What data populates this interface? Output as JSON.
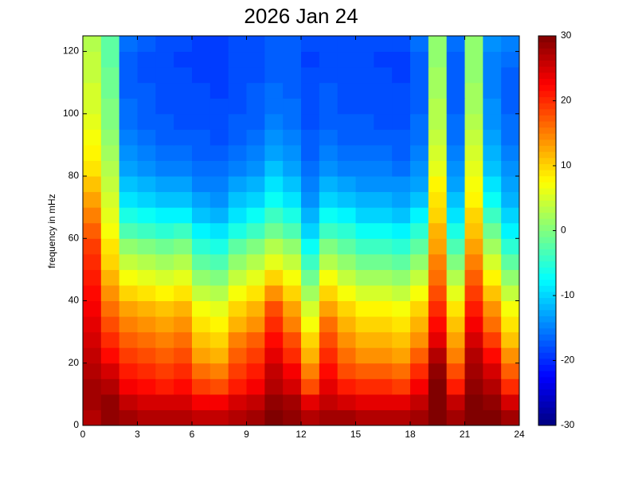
{
  "chart_data": {
    "type": "heatmap",
    "title": "2026 Jan 24",
    "ylabel": "frequency in mHz",
    "xlim": [
      0,
      24
    ],
    "xticks": [
      0,
      3,
      6,
      9,
      12,
      15,
      18,
      21,
      24
    ],
    "ylim": [
      0,
      125
    ],
    "yticks": [
      0,
      20,
      40,
      60,
      80,
      100,
      120
    ],
    "colorbar": {
      "lim": [
        -30,
        30
      ],
      "ticks": [
        -30,
        -20,
        -10,
        0,
        10,
        20,
        30
      ],
      "colormap": "jet"
    },
    "x": [
      0.5,
      1.5,
      2.5,
      3.5,
      4.5,
      5.5,
      6.5,
      7.5,
      8.5,
      9.5,
      10.5,
      11.5,
      12.5,
      13.5,
      14.5,
      15.5,
      16.5,
      17.5,
      18.5,
      19.5,
      20.5,
      21.5,
      22.5,
      23.5
    ],
    "y": [
      2.5,
      7.5,
      12.5,
      17.5,
      22.5,
      27.5,
      32.5,
      37.5,
      42.5,
      47.5,
      52.5,
      57.5,
      62.5,
      67.5,
      72.5,
      77.5,
      82.5,
      87.5,
      92.5,
      97.5,
      102.5,
      107.5,
      112.5,
      117.5,
      122.5
    ],
    "values": [
      [
        27,
        29,
        28,
        27,
        27,
        27,
        26,
        26,
        27,
        28,
        30,
        29,
        27,
        28,
        28,
        27,
        27,
        27,
        28,
        30,
        28,
        30,
        30,
        28
      ],
      [
        28,
        29,
        26,
        25,
        25,
        25,
        23,
        23,
        25,
        26,
        29,
        28,
        24,
        26,
        25,
        24,
        24,
        24,
        26,
        30,
        26,
        30,
        29,
        25
      ],
      [
        28,
        27,
        23,
        22,
        21,
        22,
        19,
        18,
        21,
        23,
        27,
        25,
        18,
        24,
        21,
        20,
        20,
        19,
        23,
        30,
        21,
        29,
        27,
        20
      ],
      [
        27,
        25,
        21,
        20,
        19,
        20,
        16,
        15,
        19,
        21,
        26,
        23,
        15,
        22,
        18,
        17,
        17,
        16,
        20,
        29,
        18,
        28,
        25,
        17
      ],
      [
        26,
        22,
        19,
        18,
        17,
        18,
        13,
        12,
        17,
        19,
        24,
        20,
        12,
        20,
        16,
        14,
        14,
        13,
        17,
        27,
        15,
        27,
        22,
        14
      ],
      [
        25,
        20,
        17,
        16,
        15,
        16,
        11,
        10,
        15,
        17,
        22,
        18,
        10,
        18,
        14,
        12,
        12,
        11,
        14,
        24,
        13,
        25,
        19,
        11
      ],
      [
        24,
        18,
        15,
        14,
        13,
        14,
        9,
        8,
        12,
        14,
        20,
        15,
        7,
        16,
        12,
        10,
        10,
        9,
        12,
        22,
        11,
        23,
        16,
        9
      ],
      [
        23,
        16,
        13,
        12,
        11,
        12,
        7,
        6,
        10,
        12,
        18,
        13,
        5,
        13,
        10,
        8,
        8,
        7,
        10,
        20,
        9,
        21,
        14,
        7
      ],
      [
        22,
        14,
        10,
        9,
        8,
        9,
        4,
        3,
        7,
        9,
        14,
        10,
        2,
        10,
        7,
        5,
        5,
        4,
        7,
        18,
        6,
        19,
        11,
        4
      ],
      [
        21,
        12,
        7,
        6,
        5,
        6,
        1,
        0,
        4,
        6,
        10,
        7,
        -1,
        7,
        4,
        2,
        2,
        1,
        4,
        16,
        3,
        17,
        8,
        1
      ],
      [
        20,
        10,
        4,
        3,
        2,
        3,
        -2,
        -3,
        1,
        3,
        6,
        4,
        -4,
        3,
        1,
        -1,
        -1,
        -2,
        1,
        15,
        0,
        15,
        5,
        -2
      ],
      [
        19,
        9,
        1,
        0,
        -1,
        0,
        -5,
        -6,
        -2,
        0,
        3,
        1,
        -7,
        0,
        -2,
        -4,
        -4,
        -5,
        -2,
        13,
        -3,
        13,
        2,
        -5
      ],
      [
        17,
        7,
        -3,
        -4,
        -5,
        -4,
        -8,
        -9,
        -6,
        -4,
        -1,
        -3,
        -10,
        -4,
        -5,
        -7,
        -7,
        -8,
        -5,
        12,
        -6,
        11,
        -1,
        -8
      ],
      [
        15,
        6,
        -6,
        -7,
        -8,
        -8,
        -11,
        -12,
        -9,
        -7,
        -4,
        -6,
        -12,
        -7,
        -8,
        -10,
        -10,
        -11,
        -8,
        10,
        -9,
        10,
        -4,
        -10
      ],
      [
        13,
        5,
        -9,
        -10,
        -11,
        -11,
        -13,
        -14,
        -11,
        -10,
        -7,
        -9,
        -14,
        -10,
        -11,
        -12,
        -12,
        -13,
        -11,
        9,
        -11,
        8,
        -7,
        -12
      ],
      [
        11,
        4,
        -11,
        -12,
        -13,
        -13,
        -15,
        -15,
        -13,
        -12,
        -9,
        -11,
        -15,
        -12,
        -13,
        -14,
        -14,
        -14,
        -13,
        8,
        -13,
        7,
        -9,
        -13
      ],
      [
        9,
        3,
        -13,
        -14,
        -15,
        -15,
        -16,
        -16,
        -15,
        -14,
        -11,
        -13,
        -16,
        -14,
        -15,
        -15,
        -15,
        -16,
        -14,
        6,
        -14,
        6,
        -11,
        -14
      ],
      [
        8,
        2,
        -14,
        -15,
        -16,
        -16,
        -17,
        -17,
        -16,
        -15,
        -13,
        -14,
        -17,
        -15,
        -16,
        -16,
        -16,
        -17,
        -15,
        5,
        -15,
        5,
        -12,
        -15
      ],
      [
        7,
        1,
        -15,
        -16,
        -17,
        -17,
        -17,
        -18,
        -17,
        -16,
        -14,
        -15,
        -17,
        -16,
        -17,
        -17,
        -17,
        -17,
        -16,
        4,
        -16,
        4,
        -13,
        -16
      ],
      [
        6,
        0,
        -16,
        -17,
        -17,
        -18,
        -18,
        -18,
        -17,
        -17,
        -15,
        -16,
        -18,
        -17,
        -17,
        -17,
        -18,
        -18,
        -16,
        3,
        -16,
        3,
        -14,
        -16
      ],
      [
        5,
        0,
        -16,
        -17,
        -18,
        -18,
        -18,
        -18,
        -18,
        -17,
        -16,
        -16,
        -18,
        -17,
        -18,
        -18,
        -18,
        -18,
        -17,
        3,
        -17,
        2,
        -14,
        -17
      ],
      [
        5,
        -1,
        -17,
        -17,
        -18,
        -18,
        -18,
        -19,
        -18,
        -17,
        -16,
        -17,
        -18,
        -17,
        -18,
        -18,
        -18,
        -18,
        -17,
        2,
        -17,
        2,
        -15,
        -17
      ],
      [
        4,
        -1,
        -17,
        -18,
        -18,
        -18,
        -19,
        -19,
        -18,
        -18,
        -17,
        -17,
        -18,
        -18,
        -18,
        -18,
        -18,
        -19,
        -17,
        2,
        -17,
        1,
        -15,
        -17
      ],
      [
        4,
        -2,
        -17,
        -18,
        -18,
        -19,
        -19,
        -19,
        -18,
        -18,
        -17,
        -17,
        -19,
        -18,
        -18,
        -18,
        -19,
        -19,
        -17,
        1,
        -17,
        1,
        -15,
        -16
      ],
      [
        3,
        -2,
        -16,
        -17,
        -18,
        -18,
        -19,
        -19,
        -18,
        -18,
        -17,
        -17,
        -18,
        -18,
        -18,
        -18,
        -18,
        -18,
        -16,
        1,
        -16,
        1,
        -14,
        -15
      ]
    ]
  }
}
